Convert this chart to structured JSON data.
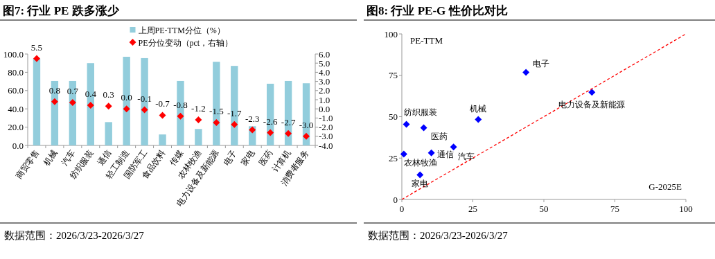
{
  "chart_data": [
    {
      "type": "bar",
      "title": "图7: 行业 PE 跌多涨少",
      "legend": "top",
      "categories": [
        "商贸零售",
        "机械",
        "汽车",
        "纺织服装",
        "通信",
        "轻工制造",
        "国防军工",
        "食品饮料",
        "传媒",
        "农林牧渔",
        "电力设备及新能源",
        "电子",
        "家电",
        "医药",
        "计算机",
        "消费者服务"
      ],
      "series": [
        {
          "name": "上周PE-TTM分位（%）",
          "color": "#92cddc",
          "values": [
            95,
            70.5,
            70.5,
            90,
            25.5,
            97,
            95.5,
            12,
            70.5,
            18,
            91.5,
            87,
            21,
            67.5,
            70.5,
            68
          ]
        },
        {
          "name": "PE分位变动（pct，右轴）",
          "type": "scatter",
          "axis": "y2",
          "marker": "diamond",
          "color": "#ff0000",
          "values": [
            5.5,
            0.8,
            0.7,
            0.4,
            0.3,
            0.0,
            -0.1,
            -0.7,
            -0.8,
            -1.2,
            -1.5,
            -1.7,
            -2.3,
            -2.6,
            -2.7,
            -3.0
          ],
          "value_labels": [
            "5.5",
            "0.8",
            "0.7",
            "0.4",
            "0.3",
            "0.0",
            "-0.1",
            "-0.7",
            "-0.8",
            "-1.2",
            "-1.5",
            "-1.7",
            "-2.3",
            "-2.6",
            "-2.7",
            "-3.0"
          ]
        }
      ],
      "ylim": [
        0,
        100
      ],
      "yticks": [
        {
          "value": 0,
          "label": "0.0"
        },
        {
          "value": 20,
          "label": "20.0"
        },
        {
          "value": 40,
          "label": "40.0"
        },
        {
          "value": 60,
          "label": "60.0"
        },
        {
          "value": 80,
          "label": "80.0"
        },
        {
          "value": 100,
          "label": "100.0"
        }
      ],
      "y2lim": [
        -4,
        6
      ],
      "y2ticks": [
        {
          "value": -4,
          "label": "-4.0"
        },
        {
          "value": -3,
          "label": "-3.0"
        },
        {
          "value": -2,
          "label": "-2.0"
        },
        {
          "value": -1,
          "label": "-1.0"
        },
        {
          "value": 0,
          "label": "0.0"
        },
        {
          "value": 1,
          "label": "1.0"
        },
        {
          "value": 2,
          "label": "2.0"
        },
        {
          "value": 3,
          "label": "3.0"
        },
        {
          "value": 4,
          "label": "4.0"
        },
        {
          "value": 5,
          "label": "5.0"
        },
        {
          "value": 6,
          "label": "6.0"
        }
      ],
      "annotations": [
        "数据范围：2026/3/23-2026/3/27"
      ]
    },
    {
      "type": "scatter",
      "title": "图8: 行业 PE-G 性价比对比",
      "xlabel": "G-2025E",
      "ylabel": "PE-TTM",
      "series": [
        {
          "marker": "diamond",
          "color": "#0000ff",
          "x": [
            1.6,
            7.7,
            26.9,
            43.7,
            66.9,
            18.2,
            10.4,
            0.7,
            6.4
          ],
          "values": [
            45.4,
            43.3,
            48.3,
            76.8,
            64.7,
            31.7,
            28.1,
            27.4,
            14.9
          ]
        },
        {
          "type": "line",
          "line_style": "dashed",
          "marker": "none",
          "color": "#ff0000",
          "x": [
            0,
            100
          ],
          "values": [
            0,
            100
          ]
        }
      ],
      "xlim": [
        0,
        100
      ],
      "xticks": [
        0,
        25,
        50,
        75,
        100
      ],
      "ylim": [
        0,
        100
      ],
      "yticks": [
        0,
        25,
        50,
        75,
        100
      ],
      "annotations": [
        {
          "text": "纺织服装",
          "x": 1.6,
          "y": 45.4
        },
        {
          "text": "医药",
          "x": 7.7,
          "y": 43.3
        },
        {
          "text": "机械",
          "x": 26.9,
          "y": 48.3
        },
        {
          "text": "电子",
          "x": 43.7,
          "y": 76.8
        },
        {
          "text": "电力设备及新能源",
          "x": 66.9,
          "y": 64.7
        },
        {
          "text": "汽车",
          "x": 18.2,
          "y": 31.7
        },
        {
          "text": "通信",
          "x": 10.4,
          "y": 28.1
        },
        {
          "text": "农林牧渔",
          "x": 0.7,
          "y": 27.4
        },
        {
          "text": "家电",
          "x": 6.4,
          "y": 14.9
        },
        "数据范围：2026/3/23-2026/3/27"
      ]
    }
  ]
}
